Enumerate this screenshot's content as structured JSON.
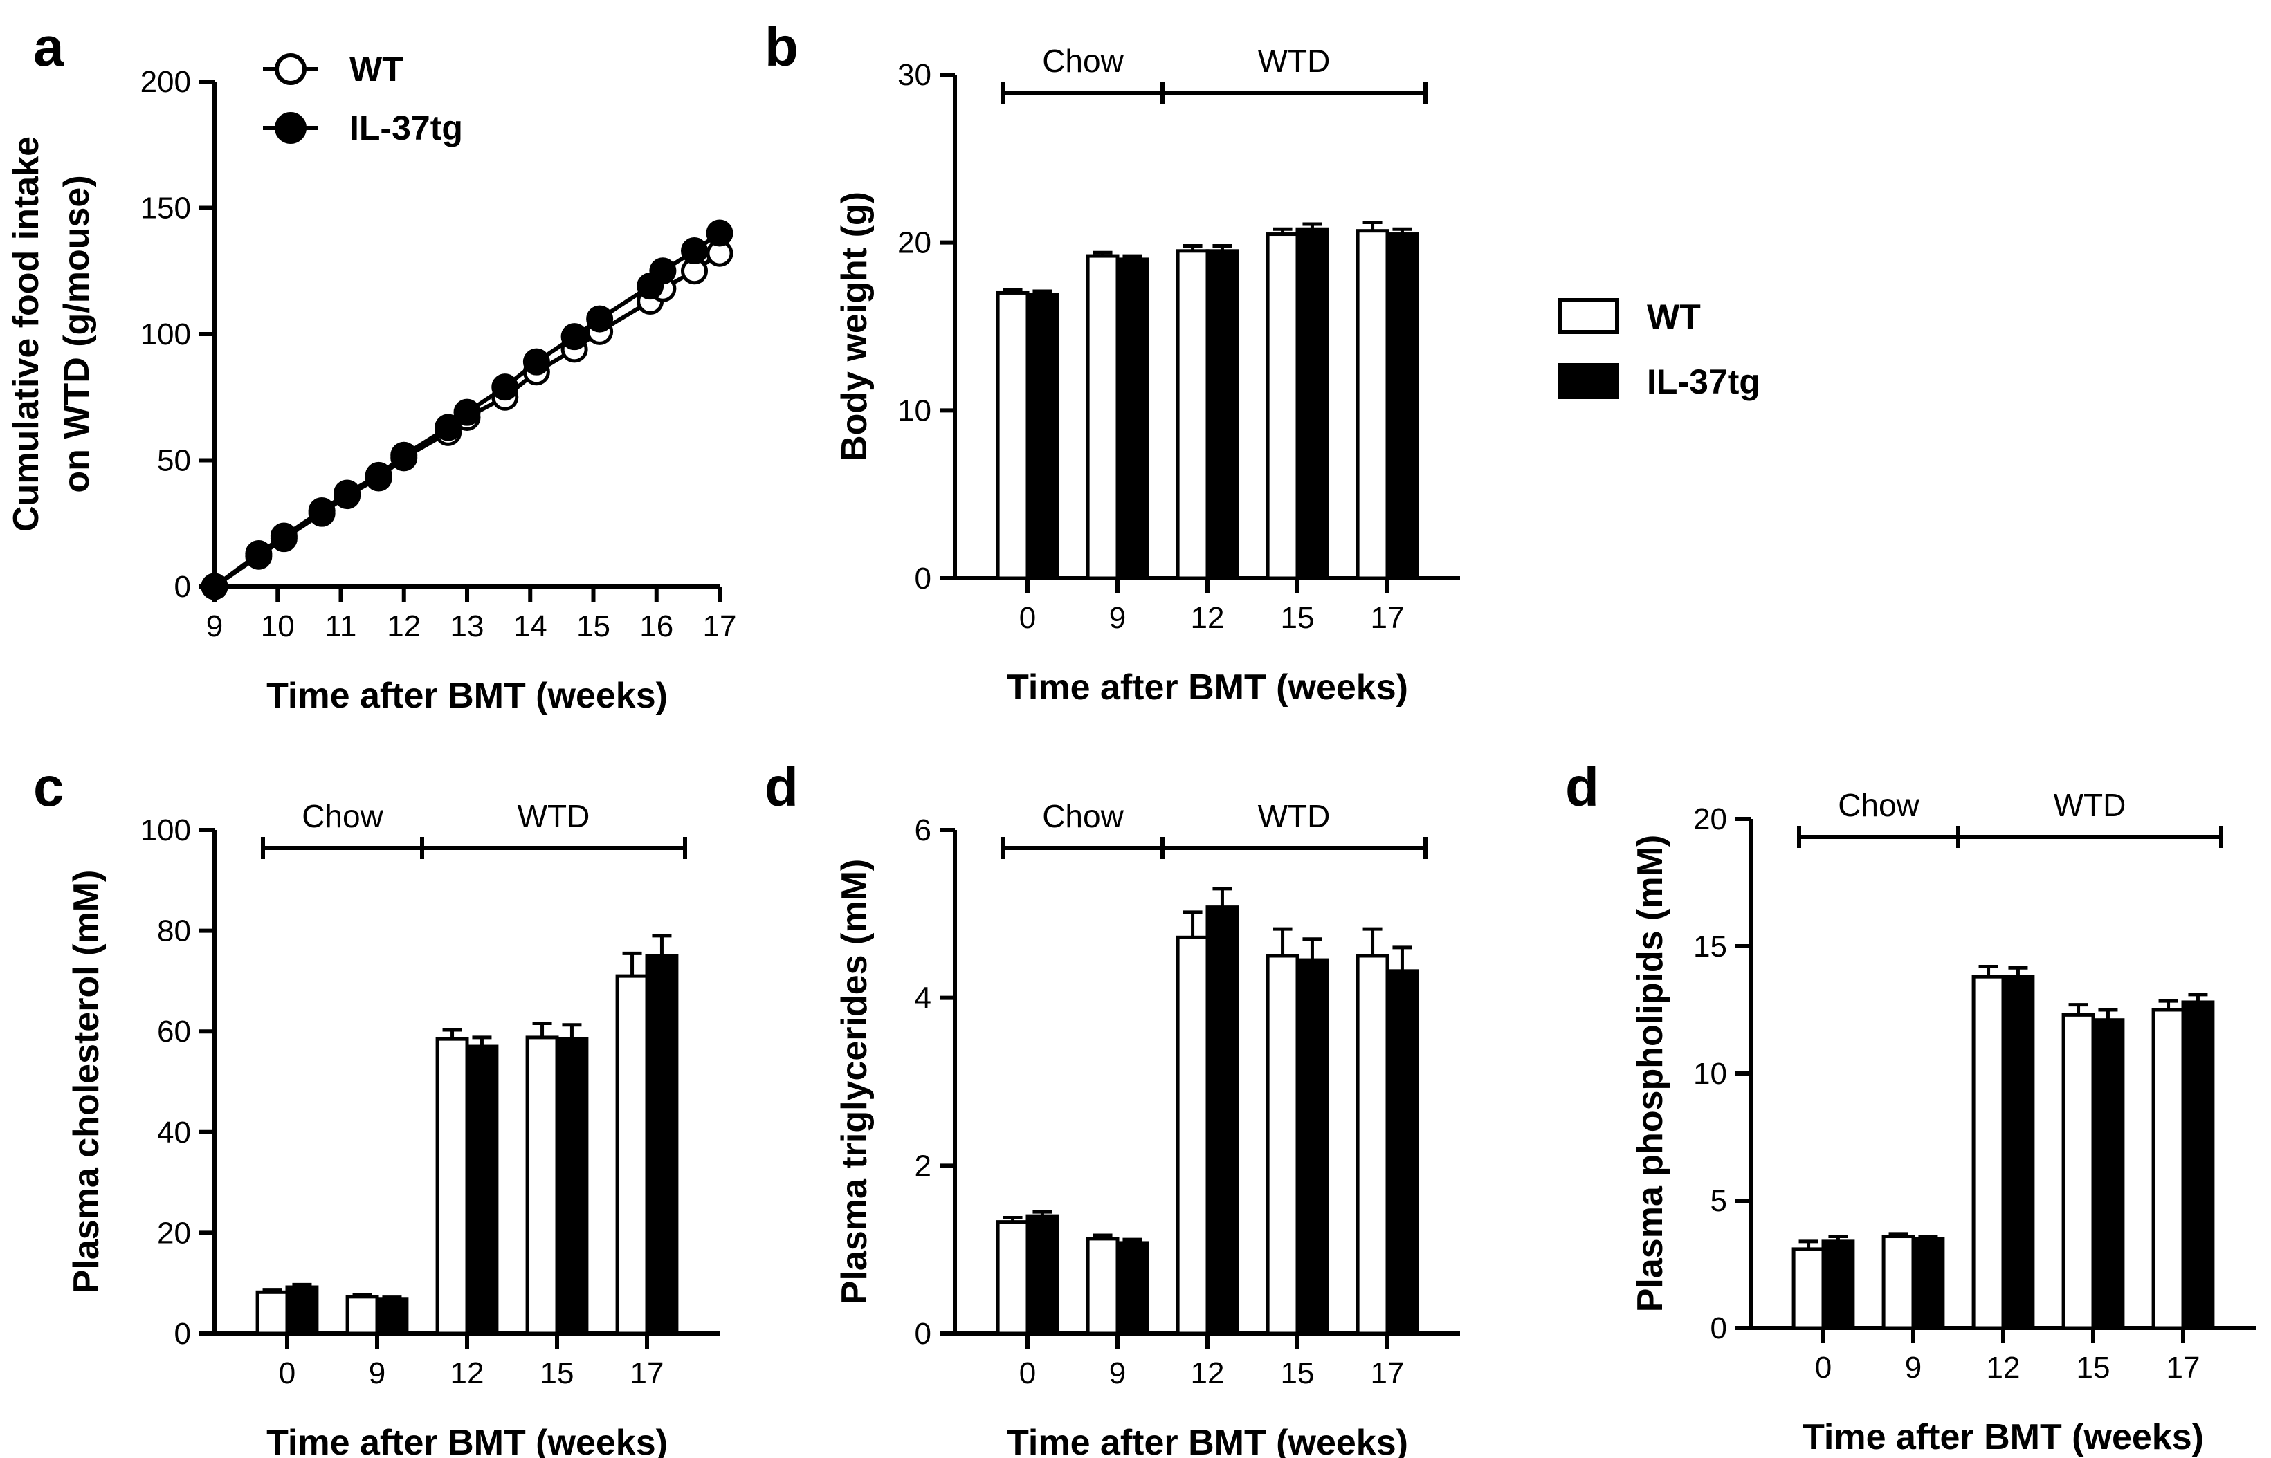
{
  "figure": {
    "legend_line": {
      "wt": "WT",
      "il37": "IL-37tg"
    },
    "legend_bar": {
      "wt": "WT",
      "il37": "IL-37tg"
    },
    "colors": {
      "wt_fill": "#ffffff",
      "il37_fill": "#000000",
      "stroke": "#000000"
    }
  },
  "chart_data": [
    {
      "id": "a",
      "panel_label": "a",
      "type": "line",
      "xlabel": "Time after BMT (weeks)",
      "ylabel_lines": [
        "Cumulative food intake",
        "on WTD (g/mouse)"
      ],
      "xlim": [
        9,
        17
      ],
      "ylim": [
        0,
        200
      ],
      "xticks": [
        9,
        10,
        11,
        12,
        13,
        14,
        15,
        16,
        17
      ],
      "yticks": [
        0,
        50,
        100,
        150,
        200
      ],
      "series": [
        {
          "name": "WT",
          "marker": "open-circle",
          "x": [
            9,
            9.7,
            10.1,
            10.7,
            11.1,
            11.6,
            12.0,
            12.7,
            13.0,
            13.6,
            14.1,
            14.7,
            15.1,
            15.9,
            16.1,
            16.6,
            17.0
          ],
          "y": [
            0,
            12,
            19,
            29,
            36,
            43,
            51,
            61,
            67,
            75,
            85,
            94,
            101,
            113,
            118,
            125,
            132
          ]
        },
        {
          "name": "IL-37tg",
          "marker": "filled-circle",
          "x": [
            9,
            9.7,
            10.1,
            10.7,
            11.1,
            11.6,
            12.0,
            12.7,
            13.0,
            13.6,
            14.1,
            14.7,
            15.1,
            15.9,
            16.1,
            16.6,
            17.0
          ],
          "y": [
            0,
            13,
            20,
            30,
            37,
            44,
            52,
            63,
            69,
            79,
            89,
            99,
            106,
            119,
            125,
            133,
            140
          ]
        }
      ]
    },
    {
      "id": "b",
      "panel_label": "b",
      "type": "bar",
      "xlabel": "Time after BMT (weeks)",
      "ylabel": "Body weight (g)",
      "ylim": [
        0,
        30
      ],
      "yticks": [
        0,
        10,
        20,
        30
      ],
      "categories": [
        "0",
        "9",
        "12",
        "15",
        "17"
      ],
      "diet_segments": [
        {
          "label": "Chow",
          "from_category": 0,
          "to_boundary": 1.5
        },
        {
          "label": "WTD",
          "from_boundary": 1.5,
          "to_category": 4
        }
      ],
      "series": [
        {
          "name": "WT",
          "values": [
            17.0,
            19.2,
            19.5,
            20.5,
            20.7
          ],
          "errors": [
            0.2,
            0.2,
            0.3,
            0.3,
            0.5
          ]
        },
        {
          "name": "IL-37tg",
          "values": [
            16.9,
            19.0,
            19.5,
            20.8,
            20.5
          ],
          "errors": [
            0.2,
            0.2,
            0.3,
            0.3,
            0.3
          ]
        }
      ]
    },
    {
      "id": "c",
      "panel_label": "c",
      "type": "bar",
      "xlabel": "Time after BMT (weeks)",
      "ylabel": "Plasma cholesterol (mM)",
      "ylim": [
        0,
        100
      ],
      "yticks": [
        0,
        20,
        40,
        60,
        80,
        100
      ],
      "categories": [
        "0",
        "9",
        "12",
        "15",
        "17"
      ],
      "diet_segments": [
        {
          "label": "Chow",
          "from_category": 0,
          "to_boundary": 1.5
        },
        {
          "label": "WTD",
          "from_boundary": 1.5,
          "to_category": 4
        }
      ],
      "series": [
        {
          "name": "WT",
          "values": [
            8.2,
            7.3,
            58.5,
            58.8,
            71.0
          ],
          "errors": [
            0.5,
            0.4,
            1.8,
            2.8,
            4.5
          ]
        },
        {
          "name": "IL-37tg",
          "values": [
            9.2,
            6.9,
            57.0,
            58.5,
            75.0
          ],
          "errors": [
            0.5,
            0.3,
            1.8,
            2.8,
            4.0
          ]
        }
      ]
    },
    {
      "id": "d1",
      "panel_label": "d",
      "type": "bar",
      "xlabel": "Time after BMT (weeks)",
      "ylabel": "Plasma triglycerides (mM)",
      "ylim": [
        0,
        6
      ],
      "yticks": [
        0,
        2,
        4,
        6
      ],
      "categories": [
        "0",
        "9",
        "12",
        "15",
        "17"
      ],
      "diet_segments": [
        {
          "label": "Chow",
          "from_category": 0,
          "to_boundary": 1.5
        },
        {
          "label": "WTD",
          "from_boundary": 1.5,
          "to_category": 4
        }
      ],
      "series": [
        {
          "name": "WT",
          "values": [
            1.33,
            1.13,
            4.72,
            4.5,
            4.5
          ],
          "errors": [
            0.05,
            0.04,
            0.3,
            0.32,
            0.32
          ]
        },
        {
          "name": "IL-37tg",
          "values": [
            1.4,
            1.08,
            5.08,
            4.45,
            4.32
          ],
          "errors": [
            0.05,
            0.04,
            0.22,
            0.25,
            0.28
          ]
        }
      ]
    },
    {
      "id": "d2",
      "panel_label": "d",
      "type": "bar",
      "xlabel": "Time after BMT (weeks)",
      "ylabel": "Plasma phospholipids (mM)",
      "ylim": [
        0,
        20
      ],
      "yticks": [
        0,
        5,
        10,
        15,
        20
      ],
      "categories": [
        "0",
        "9",
        "12",
        "15",
        "17"
      ],
      "diet_segments": [
        {
          "label": "Chow",
          "from_category": 0,
          "to_boundary": 1.5
        },
        {
          "label": "WTD",
          "from_boundary": 1.5,
          "to_category": 4
        }
      ],
      "series": [
        {
          "name": "WT",
          "values": [
            3.1,
            3.6,
            13.8,
            12.3,
            12.5
          ],
          "errors": [
            0.3,
            0.1,
            0.4,
            0.4,
            0.35
          ]
        },
        {
          "name": "IL-37tg",
          "values": [
            3.4,
            3.5,
            13.8,
            12.1,
            12.8
          ],
          "errors": [
            0.2,
            0.1,
            0.35,
            0.4,
            0.3
          ]
        }
      ]
    }
  ]
}
